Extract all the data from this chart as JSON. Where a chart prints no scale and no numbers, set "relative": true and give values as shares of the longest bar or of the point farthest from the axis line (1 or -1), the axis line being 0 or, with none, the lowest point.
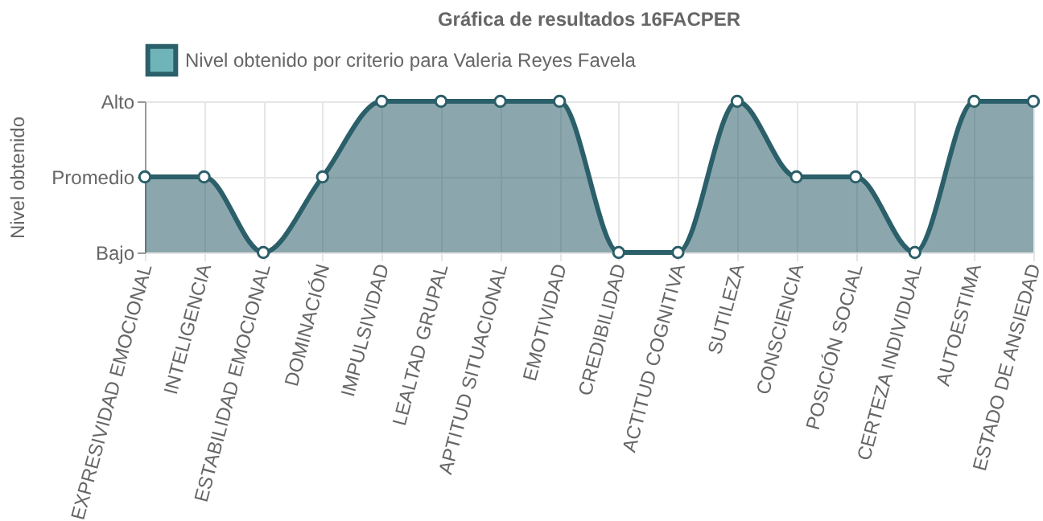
{
  "chart_data": {
    "type": "area",
    "title": "Gráfica de resultados 16FACPER",
    "ylabel": "Nivel obtenido",
    "relative": true,
    "categories": [
      "EXPRESIVIDAD EMOCIONAL",
      "INTELIGENCIA",
      "ESTABILIDAD EMOCIONAL",
      "DOMINACIÓN",
      "IMPULSIVIDAD",
      "LEALTAD GRUPAL",
      "APTITUD SITUACIONAL",
      "EMOTIVIDAD",
      "CREDIBILIDAD",
      "ACTITUD COGNITIVA",
      "SUTILEZA",
      "CONSCIENCIA",
      "POSICIÓN SOCIAL",
      "CERTEZA INDIVIDUAL",
      "AUTOESTIMA",
      "ESTADO DE ANSIEDAD"
    ],
    "y_categories": [
      "Alto",
      "Promedio",
      "Bajo"
    ],
    "series": [
      {
        "name": "Nivel obtenido por criterio para Valeria Reyes Favela",
        "color": "#2b5f69",
        "values": [
          0.5,
          0.5,
          0,
          0.5,
          1,
          1,
          1,
          1,
          0,
          0,
          1,
          0.5,
          0.5,
          0,
          1,
          1
        ]
      }
    ],
    "grid": true,
    "legend": "top",
    "marker": "circle"
  }
}
